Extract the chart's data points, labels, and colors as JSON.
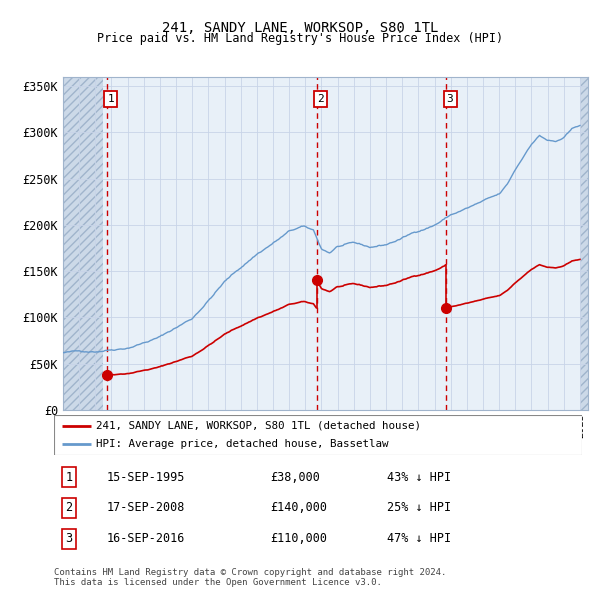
{
  "title": "241, SANDY LANE, WORKSOP, S80 1TL",
  "subtitle": "Price paid vs. HM Land Registry's House Price Index (HPI)",
  "ytick_vals": [
    0,
    50000,
    100000,
    150000,
    200000,
    250000,
    300000,
    350000
  ],
  "ylim": [
    0,
    360000
  ],
  "xlim_start": 1993.0,
  "xlim_end": 2025.5,
  "purchases": [
    {
      "label": "1",
      "date": 1995.71,
      "price": 38000
    },
    {
      "label": "2",
      "date": 2008.71,
      "price": 140000
    },
    {
      "label": "3",
      "date": 2016.71,
      "price": 110000
    }
  ],
  "purchase_table": [
    {
      "num": "1",
      "date": "15-SEP-1995",
      "price": "£38,000",
      "hpi": "43% ↓ HPI"
    },
    {
      "num": "2",
      "date": "17-SEP-2008",
      "price": "£140,000",
      "hpi": "25% ↓ HPI"
    },
    {
      "num": "3",
      "date": "16-SEP-2016",
      "price": "£110,000",
      "hpi": "47% ↓ HPI"
    }
  ],
  "legend_entries": [
    {
      "label": "241, SANDY LANE, WORKSOP, S80 1TL (detached house)",
      "color": "#cc0000"
    },
    {
      "label": "HPI: Average price, detached house, Bassetlaw",
      "color": "#6699cc"
    }
  ],
  "footer": "Contains HM Land Registry data © Crown copyright and database right 2024.\nThis data is licensed under the Open Government Licence v3.0.",
  "grid_color": "#c8d4e8",
  "plot_bg": "#e8f0f8",
  "box_color": "#cc0000",
  "red_line_color": "#cc0000",
  "blue_line_color": "#6699cc",
  "hatch_fill_color": "#ccd9e8",
  "hatch_edge_color": "#a0b4cc"
}
